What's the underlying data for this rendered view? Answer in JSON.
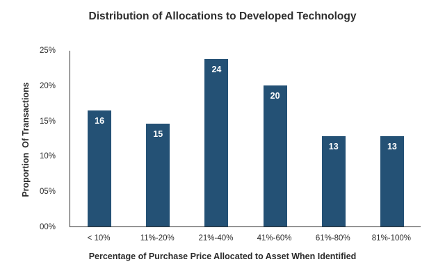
{
  "chart_data": {
    "type": "bar",
    "title": "Distribution of Allocations to Developed Technology",
    "categories": [
      "< 10%",
      "11%-20%",
      "21%-40%",
      "41%-60%",
      "61%-80%",
      "81%-100%"
    ],
    "values": [
      16,
      15,
      24,
      20,
      13,
      13
    ],
    "bar_heights_pct": [
      16.4,
      14.6,
      23.7,
      20.0,
      12.8,
      12.8
    ],
    "xlabel": "Percentage of Purchase Price Allocated to Asset When Identified",
    "ylabel": "Proportion  Of Transactions",
    "y_ticks": [
      {
        "label": "25%",
        "value": 25
      },
      {
        "label": "20%",
        "value": 20
      },
      {
        "label": "15%",
        "value": 15
      },
      {
        "label": "10%",
        "value": 10
      },
      {
        "label": "05%",
        "value": 5
      },
      {
        "label": "00%",
        "value": 0
      }
    ],
    "ylim": [
      0,
      25
    ],
    "grid": false,
    "legend": false,
    "colors": {
      "bar": "#245175",
      "bar_label": "#ffffff",
      "axis": "#2b2b2b",
      "text": "#2e2e2e"
    }
  }
}
